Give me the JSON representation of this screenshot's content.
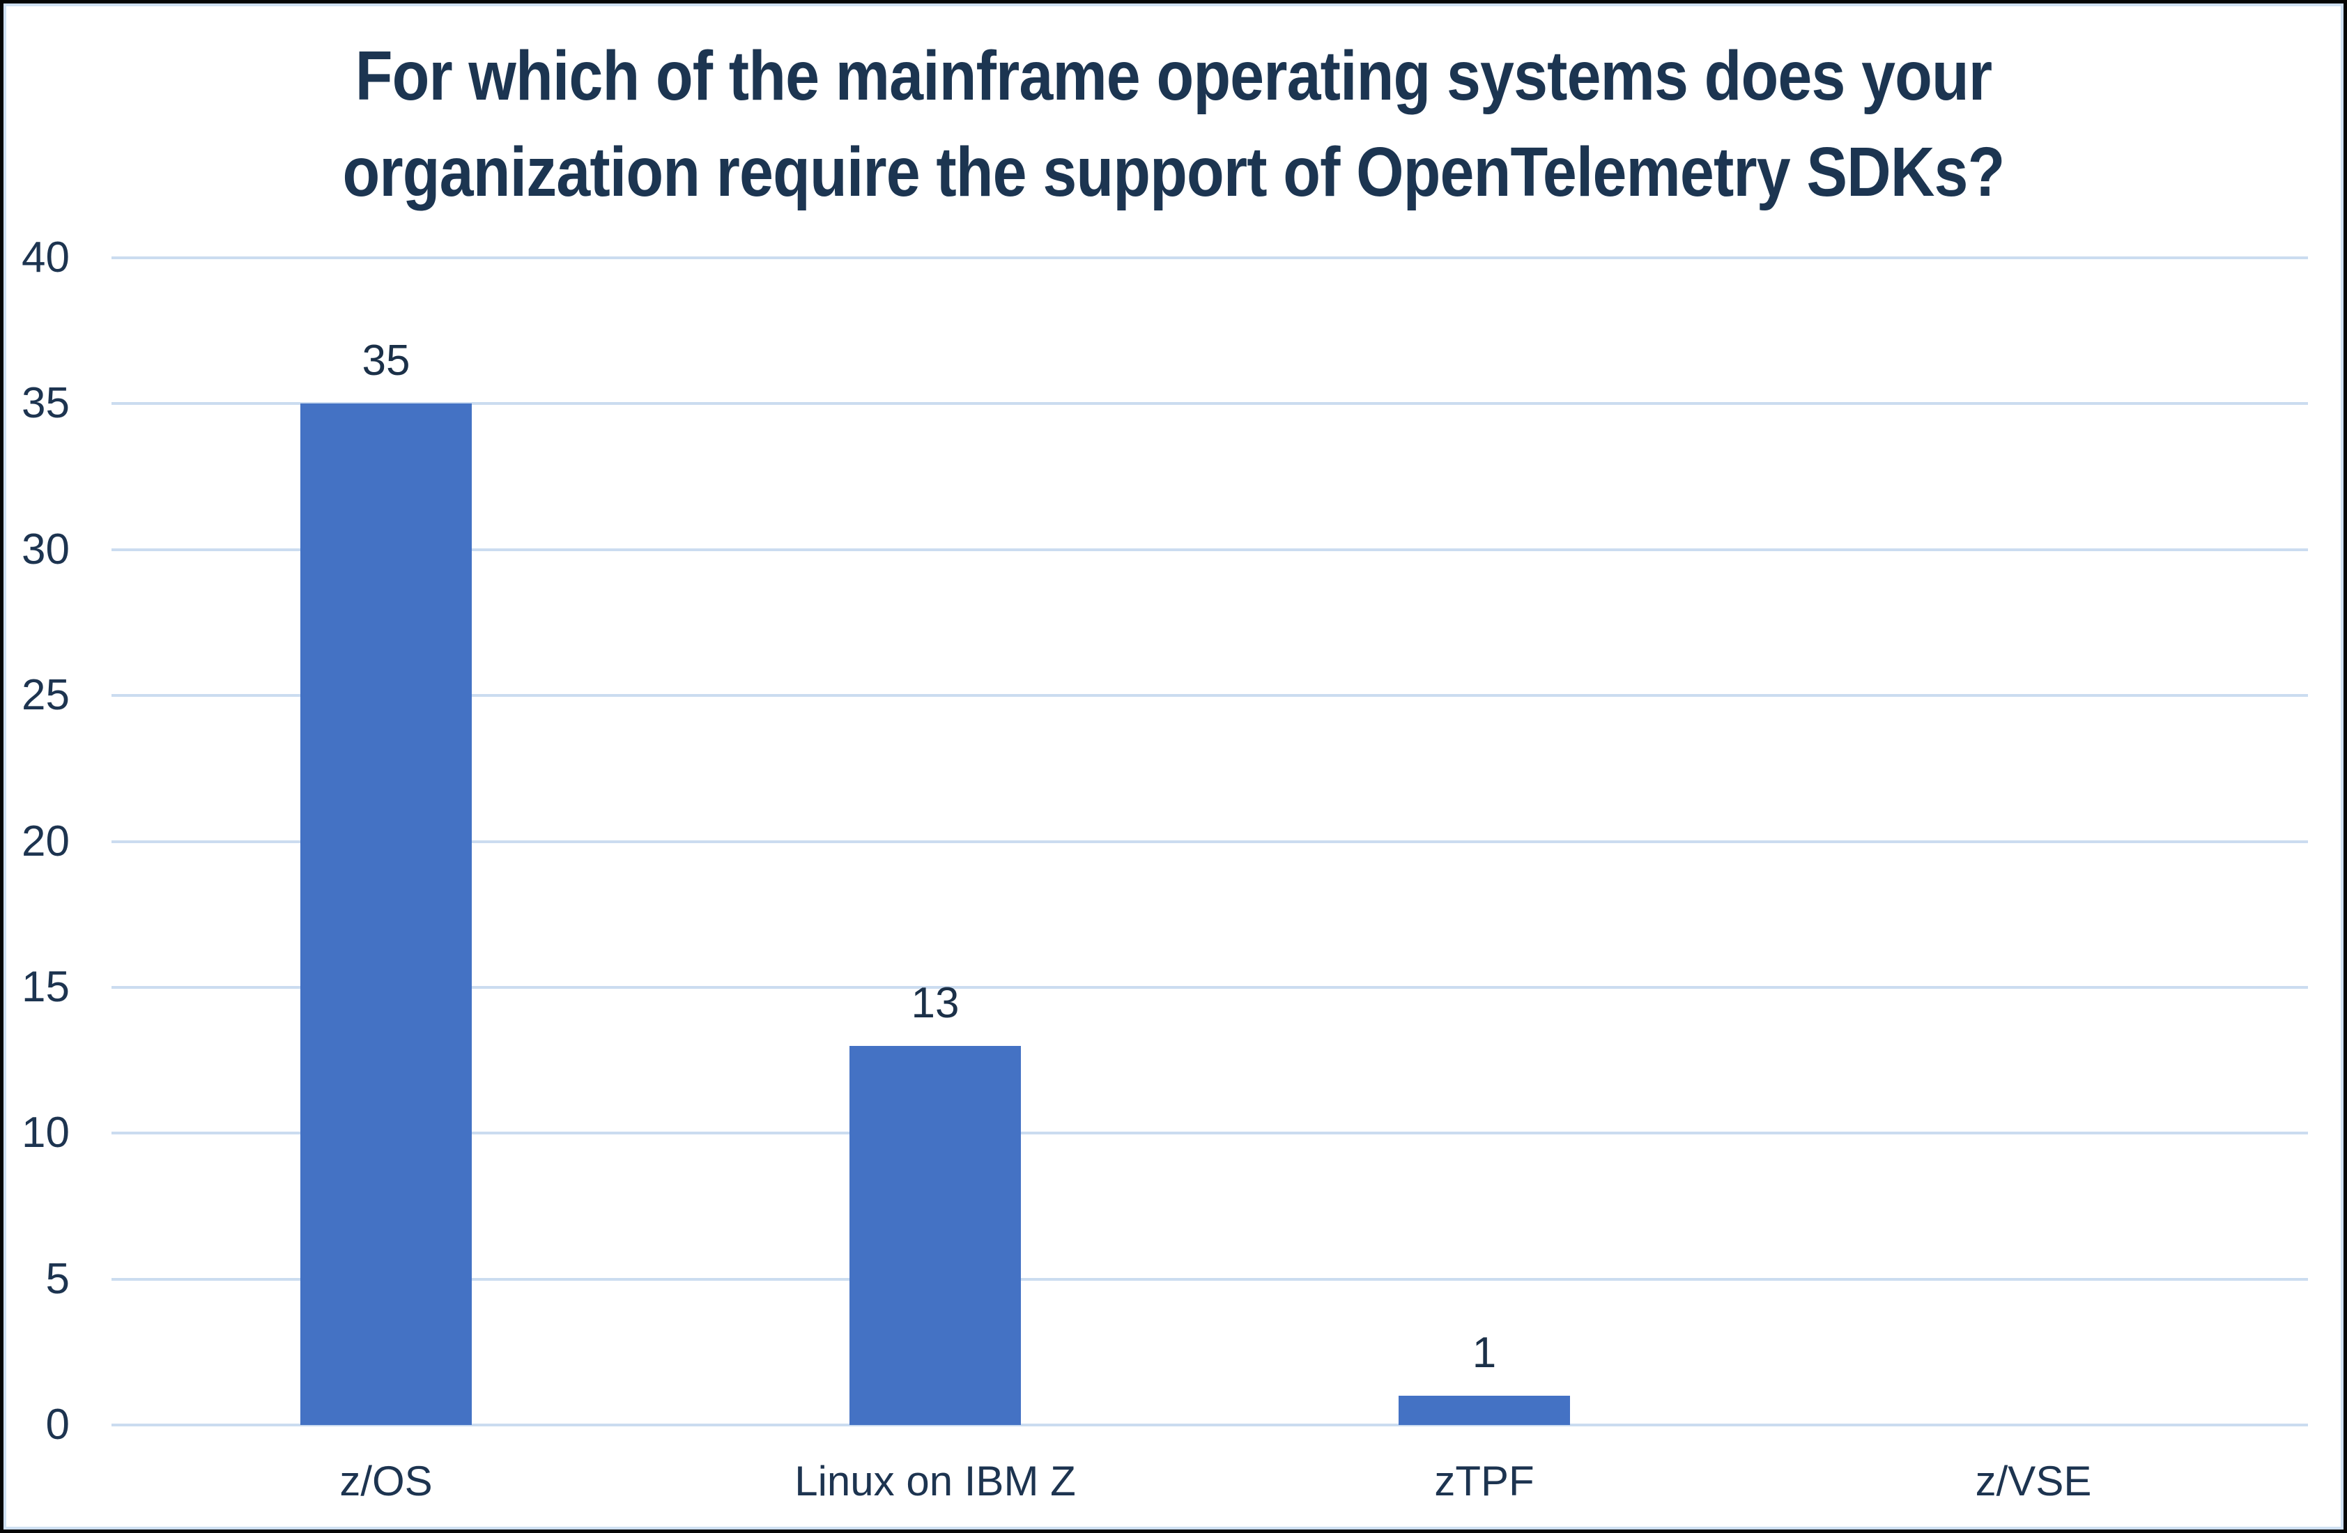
{
  "chart_data": {
    "type": "bar",
    "title": "For which of the mainframe operating systems does your organization require the support of OpenTelemetry SDKs?",
    "title_lines": [
      "For which of the mainframe operating systems does your",
      "organization require the support of OpenTelemetry SDKs?"
    ],
    "categories": [
      "z/OS",
      "Linux on IBM Z",
      "zTPF",
      "z/VSE"
    ],
    "values": [
      35,
      13,
      1,
      0
    ],
    "xlabel": "",
    "ylabel": "",
    "ylim": [
      0,
      40
    ],
    "yticks": [
      0,
      5,
      10,
      15,
      20,
      25,
      30,
      35,
      40
    ],
    "grid": "horizontal",
    "legend": "none",
    "data_labels_visible": true,
    "colors": {
      "bar": "#4472c4",
      "gridline": "#cbdcf0",
      "title_text": "#1c3551",
      "axis_text": "#1d3450",
      "data_label_text": "#1b3048",
      "outer_border": "#060606",
      "inner_border": "#cfe0f2",
      "background": "#ffffff"
    }
  }
}
